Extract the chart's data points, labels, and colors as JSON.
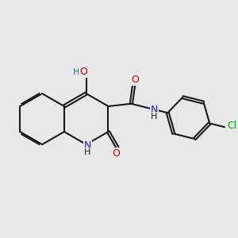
{
  "background_color": "#e8e8e8",
  "bond_color": "#1a1a1a",
  "bond_width": 1.5,
  "dbo": 0.055,
  "atom_colors": {
    "C": "#1a1a1a",
    "N": "#1a1acc",
    "O": "#cc0000",
    "H": "#1a1a1a",
    "Cl": "#00aa00",
    "HO": "#008080"
  },
  "font_size": 9,
  "figsize": [
    3.0,
    3.0
  ],
  "dpi": 100
}
